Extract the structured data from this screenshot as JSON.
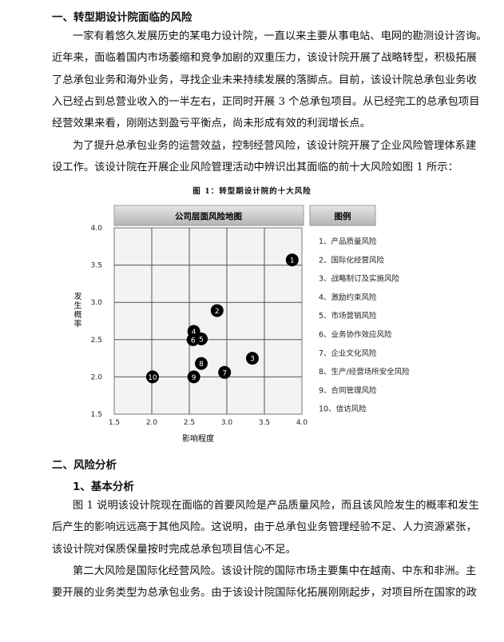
{
  "section1": {
    "heading": "一、转型期设计院面临的风险",
    "para1": [
      "一家有着悠久发展历史的某电力设计院，一直以来主要从事电站、电网的勘测设计咨询。",
      "近年来，面临着国内市场萎缩和竞争加剧的双重压力，该设计院开展了战略转型，积极拓展",
      "了总承包业务和海外业务，寻找企业未来持续发展的落脚点。目前，该设计院总承包业务收",
      "入已经占到总营业收入的一半左右，正同时开展 3 个总承包项目。从已经完工的总承包项目",
      "经营效果来看，刚刚达到盈亏平衡点，尚未形成有效的利润增长点。"
    ],
    "para2": [
      "为了提升总承包业务的运营效益，控制经营风险，该设计院开展了企业风险管理体系建",
      "设工作。该设计院在开展企业风险管理活动中辨识出其面临的前十大风险如图 1 所示："
    ],
    "caption": "图 1：转型期设计院的十大风险"
  },
  "chart_data": {
    "type": "scatter",
    "title": "公司层面风险地图",
    "legend_title": "图例",
    "xlabel": "影响程度",
    "ylabel": "发生概率",
    "xlim": [
      1.5,
      4.0
    ],
    "ylim": [
      1.5,
      4.0
    ],
    "xticks": [
      "1.5",
      "2.0",
      "2.5",
      "3.0",
      "3.5",
      "4.0"
    ],
    "yticks": [
      "1.5",
      "2.0",
      "2.5",
      "3.0",
      "3.5",
      "4.0"
    ],
    "grid": true,
    "legend_placement": "right",
    "marker_color": "#000000",
    "points": [
      {
        "label": "1",
        "x": 3.87,
        "y": 3.57
      },
      {
        "label": "2",
        "x": 2.87,
        "y": 2.89
      },
      {
        "label": "3",
        "x": 3.34,
        "y": 2.25
      },
      {
        "label": "4",
        "x": 2.56,
        "y": 2.61
      },
      {
        "label": "5",
        "x": 2.66,
        "y": 2.51
      },
      {
        "label": "6",
        "x": 2.55,
        "y": 2.5
      },
      {
        "label": "7",
        "x": 2.97,
        "y": 2.06
      },
      {
        "label": "8",
        "x": 2.66,
        "y": 2.18
      },
      {
        "label": "9",
        "x": 2.56,
        "y": 2.0
      },
      {
        "label": "10",
        "x": 2.01,
        "y": 2.0
      }
    ],
    "legend": [
      "1、产品质量风险",
      "2、国际化经营风险",
      "3、战略制订及实施风险",
      "4、激励约束风险",
      "5、市场营销风险",
      "6、业务协作效应风险",
      "7、企业文化风险",
      "8、生产/经营场所安全风险",
      "9、合同管理风险",
      "10、信访风险"
    ]
  },
  "section2": {
    "heading": "二、风险分析",
    "subheading": "1、基本分析",
    "para1": [
      "图 1 说明该设计院现在面临的首要风险是产品质量风险，而且该风险发生的概率和发生",
      "后产生的影响远远高于其他风险。这说明，由于总承包业务管理经验不足、人力资源紧张，",
      "该设计院对保质保量按时完成总承包项目信心不足。"
    ],
    "para2": [
      "第二大风险是国际化经营风险。该设计院的国际市场主要集中在越南、中东和非洲。主",
      "要开展的业务类型为总承包业务。由于该设计院国际化拓展刚刚起步，对项目所在国家的政"
    ]
  }
}
